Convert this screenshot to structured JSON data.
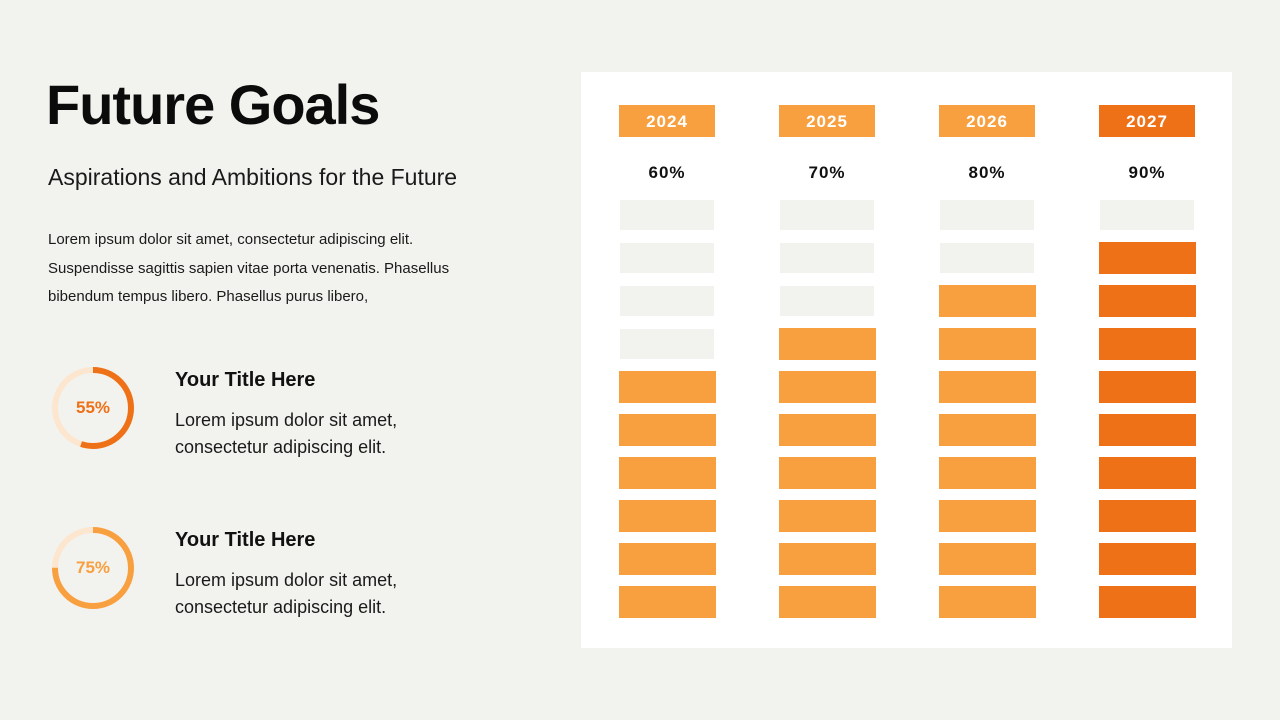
{
  "slide": {
    "title": "Future Goals",
    "subtitle": "Aspirations and Ambitions for the Future",
    "body": "Lorem ipsum dolor sit amet, consectetur adipiscing elit. Suspendisse sagittis sapien vitae porta venenatis. Phasellus bibendum tempus libero. Phasellus purus libero,"
  },
  "kpis": [
    {
      "percent_label": "55%",
      "value": 0.55,
      "color": "#ee7118",
      "track_color": "#fde6cf",
      "title": "Your Title Here",
      "description": "Lorem ipsum dolor sit amet, consectetur adipiscing elit."
    },
    {
      "percent_label": "75%",
      "value": 0.75,
      "color": "#f8a040",
      "track_color": "#fde6cf",
      "title": "Your Title Here",
      "description": "Lorem ipsum dolor sit amet, consectetur adipiscing elit."
    }
  ],
  "chart_data": {
    "type": "bar",
    "categories": [
      "2024",
      "2025",
      "2026",
      "2027"
    ],
    "values": [
      60,
      70,
      80,
      90
    ],
    "value_labels": [
      "60%",
      "70%",
      "80%",
      "90%"
    ],
    "segments_total": 10,
    "unit": "%",
    "grid": false,
    "colors": {
      "filled": "#f8a040",
      "highlight": "#ee7118",
      "empty": "#f2f2ee",
      "header_text": "#ffffff"
    },
    "highlight_index": 3
  }
}
